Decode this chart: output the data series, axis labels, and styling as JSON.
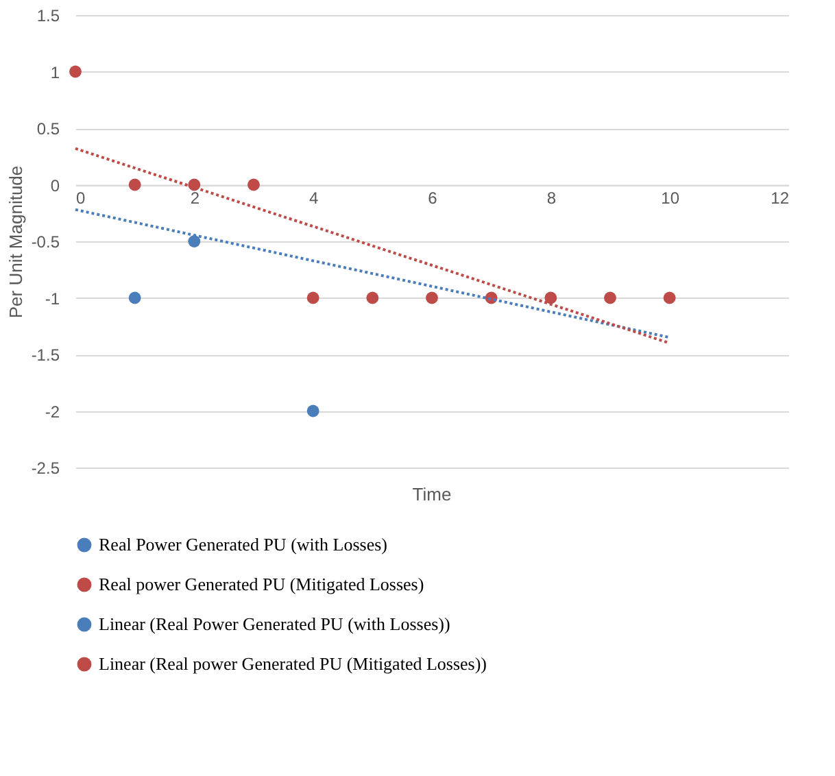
{
  "chart_data": {
    "type": "scatter",
    "xlabel": "Time",
    "ylabel": "Per Unit Magnitude",
    "xlim": [
      0,
      12
    ],
    "xticks": [
      0,
      2,
      4,
      6,
      8,
      10,
      12
    ],
    "ylim": [
      -2.5,
      1.5
    ],
    "yticks": [
      -2.5,
      -2,
      -1.5,
      -1,
      -0.5,
      0,
      0.5,
      1,
      1.5
    ],
    "grid": "y",
    "legend": "bottom",
    "series": [
      {
        "name": "Real Power Generated PU (with Losses)",
        "color": "#4a7ebb",
        "marker": "circle",
        "x": [
          1,
          2,
          4
        ],
        "values": [
          -1,
          -0.5,
          -2
        ]
      },
      {
        "name": "Real power Generated PU (Mitigated Losses)",
        "color": "#be4b48",
        "marker": "circle",
        "x": [
          0,
          1,
          2,
          3,
          4,
          5,
          6,
          7,
          8,
          9,
          10
        ],
        "values": [
          1,
          0,
          0,
          0,
          -1,
          -1,
          -1,
          -1,
          -1,
          -1,
          -1
        ]
      },
      {
        "name": "Linear (Real Power Generated PU (with Losses))",
        "type": "line",
        "line_style": "dotted",
        "color": "#4a7ebb",
        "x": [
          0,
          10
        ],
        "values": [
          -0.22,
          -1.35
        ]
      },
      {
        "name": "Linear (Real power Generated PU (Mitigated Losses))",
        "type": "line",
        "line_style": "dotted",
        "color": "#be4b48",
        "x": [
          0,
          10
        ],
        "values": [
          0.32,
          -1.4
        ]
      }
    ]
  }
}
